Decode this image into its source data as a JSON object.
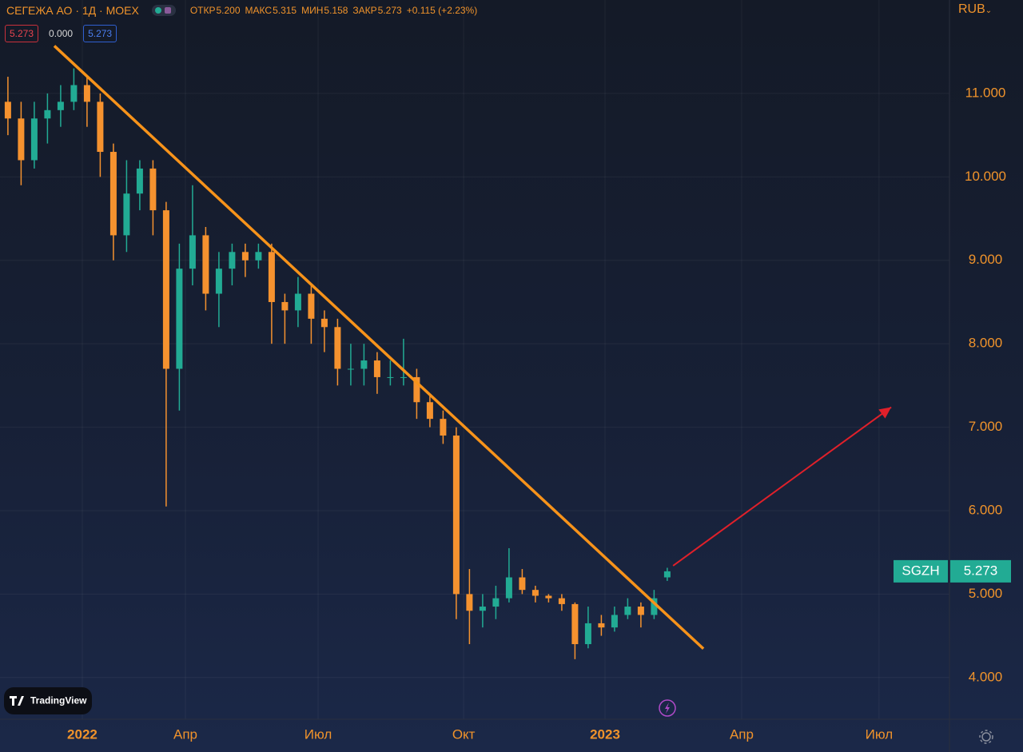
{
  "chart_data": {
    "type": "candlestick",
    "header": {
      "title": "СЕГЕЖА АО · 1Д · MOEX",
      "open_label": "ОТКР",
      "open": "5.200",
      "high_label": "МАКС",
      "high": "5.315",
      "low_label": "МИН",
      "low": "5.158",
      "close_label": "ЗАКР",
      "close": "5.273",
      "change": "+0.115 (+2.23%)",
      "badges": [
        "5.273",
        "0.000",
        "5.273"
      ],
      "currency": "RUB"
    },
    "watermark": "TradingView",
    "up_color": "#22ab94",
    "down_color": "#f5922f",
    "x": [
      3,
      8,
      13,
      18,
      23,
      28,
      33,
      38,
      43,
      48,
      53,
      58,
      63,
      68,
      73,
      78,
      83,
      88,
      93,
      98,
      103,
      108,
      113,
      118,
      123,
      128,
      133,
      138,
      143,
      148,
      153,
      158,
      163,
      168,
      173,
      178,
      183,
      188,
      193,
      198,
      203,
      208,
      213,
      218,
      223,
      228,
      233,
      238,
      243,
      248,
      253
    ],
    "open": [
      10.9,
      10.7,
      10.2,
      10.7,
      10.8,
      10.9,
      11.1,
      10.9,
      10.3,
      9.3,
      9.8,
      10.1,
      9.6,
      7.7,
      8.9,
      9.3,
      8.6,
      8.9,
      9.1,
      9.0,
      9.1,
      8.5,
      8.4,
      8.6,
      8.3,
      8.2,
      7.7,
      7.7,
      7.8,
      7.6,
      7.6,
      7.6,
      7.3,
      7.1,
      6.9,
      5.0,
      4.8,
      4.85,
      4.95,
      5.2,
      5.05,
      4.98,
      4.95,
      4.88,
      4.4,
      4.65,
      4.6,
      4.75,
      4.85,
      4.75,
      5.2
    ],
    "high": [
      11.2,
      10.9,
      10.9,
      11.0,
      11.1,
      11.3,
      11.2,
      11.0,
      10.4,
      10.2,
      10.2,
      10.2,
      9.7,
      9.2,
      9.9,
      9.4,
      9.1,
      9.2,
      9.2,
      9.2,
      9.2,
      8.6,
      8.8,
      8.7,
      8.4,
      8.3,
      8.0,
      8.0,
      7.9,
      7.8,
      8.06,
      7.7,
      7.4,
      7.2,
      7.0,
      5.3,
      5.0,
      5.1,
      5.55,
      5.3,
      5.1,
      5.0,
      5.0,
      4.9,
      4.85,
      4.75,
      4.85,
      4.95,
      4.9,
      5.05,
      5.315
    ],
    "low": [
      10.5,
      9.9,
      10.1,
      10.4,
      10.6,
      10.8,
      10.6,
      10.0,
      9.0,
      9.1,
      9.6,
      9.3,
      6.05,
      7.2,
      8.7,
      8.4,
      8.2,
      8.7,
      8.8,
      8.9,
      8.0,
      8.0,
      8.2,
      8.0,
      7.9,
      7.5,
      7.5,
      7.5,
      7.4,
      7.5,
      7.5,
      7.1,
      7.0,
      6.8,
      4.7,
      4.4,
      4.6,
      4.7,
      4.9,
      5.0,
      4.9,
      4.9,
      4.8,
      4.22,
      4.35,
      4.5,
      4.55,
      4.7,
      4.6,
      4.7,
      5.158
    ],
    "close": [
      10.7,
      10.2,
      10.7,
      10.8,
      10.9,
      11.1,
      10.9,
      10.3,
      9.3,
      9.8,
      10.1,
      9.6,
      7.7,
      8.9,
      9.3,
      8.6,
      8.9,
      9.1,
      9.0,
      9.1,
      8.5,
      8.4,
      8.6,
      8.3,
      8.2,
      7.7,
      7.7,
      7.8,
      7.6,
      7.6,
      7.6,
      7.3,
      7.1,
      6.9,
      5.0,
      4.8,
      4.85,
      4.95,
      5.2,
      5.05,
      4.98,
      4.95,
      4.88,
      4.4,
      4.65,
      4.6,
      4.75,
      4.85,
      4.75,
      4.95,
      5.273
    ],
    "xlim": [
      0,
      360
    ],
    "xticks": [
      {
        "value": 31.2,
        "label": "2022"
      },
      {
        "value": 70.3,
        "label": "Апр"
      },
      {
        "value": 120.6,
        "label": "Июл"
      },
      {
        "value": 175.8,
        "label": "Окт"
      },
      {
        "value": 229.4,
        "label": "2023"
      },
      {
        "value": 281.2,
        "label": "Апр"
      },
      {
        "value": 333.3,
        "label": "Июл"
      }
    ],
    "ylim": [
      3.5,
      12.12
    ],
    "yticks": [
      {
        "value": 4,
        "label": "4.000"
      },
      {
        "value": 5,
        "label": "5.000"
      },
      {
        "value": 6,
        "label": "6.000"
      },
      {
        "value": 7,
        "label": "7.000"
      },
      {
        "value": 8,
        "label": "8.000"
      },
      {
        "value": 9,
        "label": "9.000"
      },
      {
        "value": 10,
        "label": "10.000"
      },
      {
        "value": 11,
        "label": "11.000"
      }
    ],
    "grid": true,
    "trendline": {
      "x": [
        20.6,
        266.7
      ],
      "y": [
        11.57,
        4.345
      ],
      "color": "#f7931a"
    },
    "arrow": {
      "x": [
        255.2,
        337.9
      ],
      "y": [
        5.34,
        7.24
      ],
      "color": "#e0202a"
    },
    "last_price": {
      "symbol": "SGZH",
      "value": 5.273,
      "label": "5.273",
      "color": "#22ab94"
    }
  }
}
